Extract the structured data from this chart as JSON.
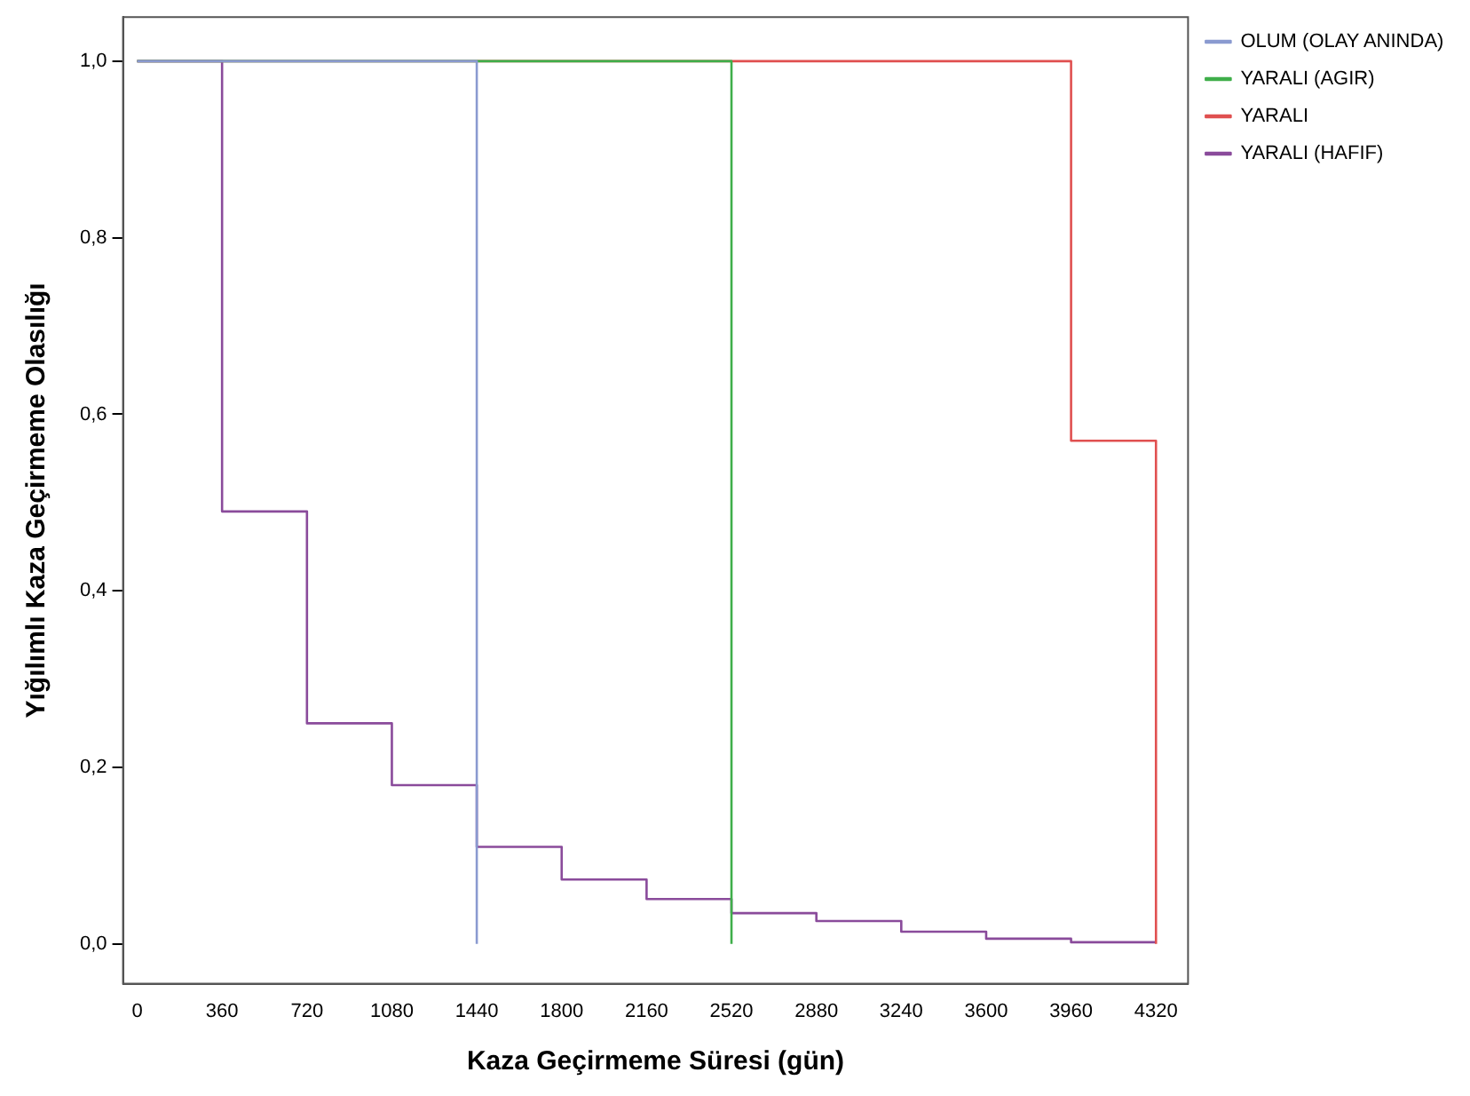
{
  "chart_data": {
    "type": "step",
    "xlabel": "Kaza Geçirmeme Süresi (gün)",
    "ylabel": "Yığılımlı Kaza Geçirmeme Olasılığı",
    "xlim": [
      -60,
      4456
    ],
    "ylim": [
      -0.045,
      1.05
    ],
    "xticks": [
      0,
      360,
      720,
      1080,
      1440,
      1800,
      2160,
      2520,
      2880,
      3240,
      3600,
      3960,
      4320
    ],
    "yticks": [
      {
        "value": 0,
        "label": "0,0"
      },
      {
        "value": 0.2,
        "label": "0,2"
      },
      {
        "value": 0.4,
        "label": "0,4"
      },
      {
        "value": 0.6,
        "label": "0,6"
      },
      {
        "value": 0.8,
        "label": "0,8"
      },
      {
        "value": 1,
        "label": "1,0"
      }
    ],
    "grid": false,
    "legend": "top right",
    "marker": "none",
    "series": [
      {
        "name": "OLUM (OLAY ANINDA)",
        "color": "#8a9ad0",
        "x": [
          0,
          1440,
          1440
        ],
        "values": [
          1,
          1,
          0
        ]
      },
      {
        "name": "YARALI (AGIR)",
        "color": "#3fae4a",
        "x": [
          0,
          2520,
          2520
        ],
        "values": [
          1,
          1,
          0
        ]
      },
      {
        "name": "YARALI",
        "color": "#e05050",
        "x": [
          0,
          3960,
          4320,
          4320
        ],
        "values": [
          1,
          0.57,
          0.57,
          0
        ]
      },
      {
        "name": "YARALI (HAFIF)",
        "color": "#8a4b9b",
        "x": [
          0,
          360,
          720,
          1080,
          1440,
          1800,
          2160,
          2520,
          2880,
          3240,
          3600,
          3960,
          4320
        ],
        "values": [
          1,
          0.49,
          0.25,
          0.18,
          0.11,
          0.073,
          0.051,
          0.035,
          0.026,
          0.014,
          0.006,
          0.002,
          0.002
        ]
      }
    ]
  }
}
